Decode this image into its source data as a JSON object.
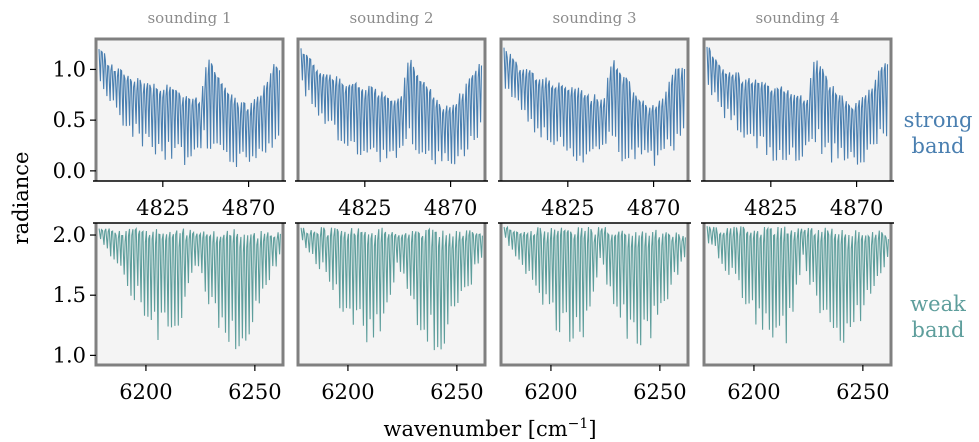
{
  "figure": {
    "ylabel": "radiance",
    "xlabel": "wavenumber [cm",
    "xlabel_sup": "−1",
    "xlabel_tail": "]"
  },
  "colors": {
    "strong": "#4a7fb0",
    "weak": "#5e9e9c",
    "panel_bg": "#f4f4f4",
    "frame": "#808080",
    "title": "#8c8c8c"
  },
  "chart_data": [
    {
      "type": "line",
      "band": "strong band",
      "band_label": [
        "strong",
        "band"
      ],
      "panels": [
        {
          "title": "sounding 1"
        },
        {
          "title": "sounding 2"
        },
        {
          "title": "sounding 3"
        },
        {
          "title": "sounding 4"
        }
      ],
      "xlim": [
        4791,
        4887
      ],
      "ylim": [
        -0.1,
        1.3
      ],
      "xticks": [
        4825,
        4870
      ],
      "xtick_labels": [
        "4825",
        "4870"
      ],
      "yticks": [
        0.0,
        0.5,
        1.0
      ],
      "ytick_labels": [
        "0.0",
        "0.5",
        "1.0"
      ],
      "grid": false,
      "continuum_points": {
        "x": [
          4791,
          4800,
          4810,
          4820,
          4830,
          4838,
          4844,
          4848,
          4853,
          4858,
          4864,
          4870,
          4876,
          4882,
          4885
        ],
        "y": [
          1.2,
          1.0,
          0.9,
          0.85,
          0.8,
          0.72,
          0.68,
          1.1,
          0.95,
          0.8,
          0.66,
          0.62,
          0.75,
          1.0,
          1.05
        ]
      },
      "dip_floor_points": {
        "x": [
          4791,
          4800,
          4810,
          4820,
          4830,
          4840,
          4846,
          4850,
          4860,
          4870,
          4880,
          4885
        ],
        "y": [
          0.8,
          0.5,
          0.3,
          0.15,
          0.06,
          0.06,
          0.3,
          0.1,
          0.04,
          0.04,
          0.15,
          0.3
        ]
      },
      "line_spacing": 1.7
    },
    {
      "type": "line",
      "band": "weak band",
      "band_label": [
        "weak",
        "band"
      ],
      "panels": [
        {
          "title": ""
        },
        {
          "title": ""
        },
        {
          "title": ""
        },
        {
          "title": ""
        }
      ],
      "xlim": [
        6178,
        6262
      ],
      "ylim": [
        0.92,
        2.1
      ],
      "xticks": [
        6200,
        6250
      ],
      "xtick_labels": [
        "6200",
        "6250"
      ],
      "yticks": [
        1.0,
        1.5,
        2.0
      ],
      "ytick_labels": [
        "1.0",
        "1.5",
        "2.0"
      ],
      "grid": false,
      "continuum_points": {
        "x": [
          6178,
          6200,
          6225,
          6240,
          6262
        ],
        "y": [
          2.04,
          2.03,
          2.03,
          2.02,
          2.0
        ]
      },
      "dip_floor_points": {
        "x": [
          6178,
          6185,
          6195,
          6205,
          6215,
          6222,
          6228,
          6235,
          6240,
          6245,
          6255,
          6262
        ],
        "y": [
          1.95,
          1.75,
          1.4,
          1.12,
          1.1,
          1.75,
          1.4,
          1.1,
          1.02,
          1.1,
          1.55,
          1.85
        ]
      },
      "line_spacing": 1.55
    }
  ]
}
